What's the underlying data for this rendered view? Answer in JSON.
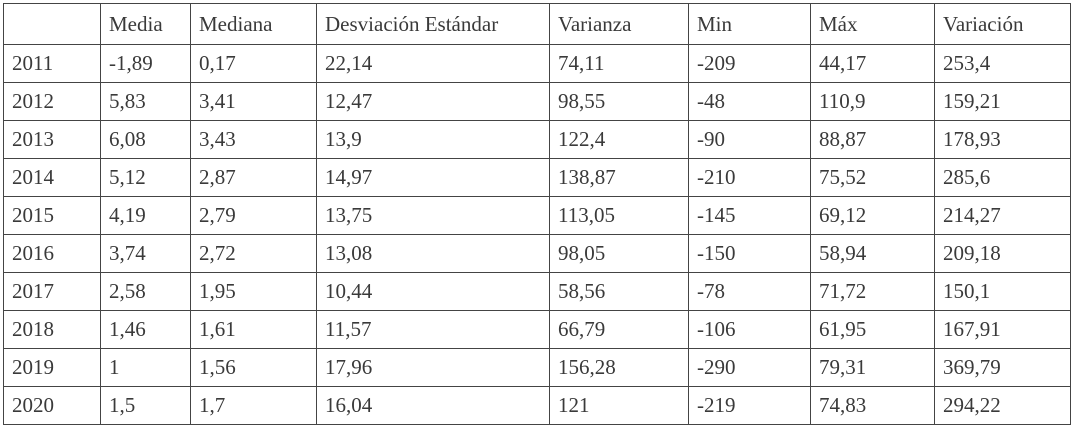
{
  "table": {
    "header": [
      "Media",
      "Mediana",
      "Desviación Estándar",
      "Varianza",
      "Min",
      "Máx",
      "Variación"
    ],
    "rows": [
      [
        "2011",
        "-1,89",
        "0,17",
        "22,14",
        "74,11",
        "-209",
        "44,17",
        "253,4"
      ],
      [
        "2012",
        "5,83",
        "3,41",
        "12,47",
        "98,55",
        "-48",
        "110,9",
        "159,21"
      ],
      [
        "2013",
        "6,08",
        "3,43",
        "13,9",
        "122,4",
        "-90",
        "88,87",
        "178,93"
      ],
      [
        "2014",
        "5,12",
        "2,87",
        "14,97",
        "138,87",
        "-210",
        "75,52",
        "285,6"
      ],
      [
        "2015",
        "4,19",
        "2,79",
        "13,75",
        "113,05",
        "-145",
        "69,12",
        "214,27"
      ],
      [
        "2016",
        "3,74",
        "2,72",
        "13,08",
        "98,05",
        "-150",
        "58,94",
        "209,18"
      ],
      [
        "2017",
        "2,58",
        "1,95",
        "10,44",
        "58,56",
        "-78",
        "71,72",
        "150,1"
      ],
      [
        "2018",
        "1,46",
        "1,61",
        "11,57",
        "66,79",
        "-106",
        "61,95",
        "167,91"
      ],
      [
        "2019",
        "1",
        "1,56",
        "17,96",
        "156,28",
        "-290",
        "79,31",
        "369,79"
      ],
      [
        "2020",
        "1,5",
        "1,7",
        "16,04",
        "121",
        "-219",
        "74,83",
        "294,22"
      ]
    ]
  }
}
